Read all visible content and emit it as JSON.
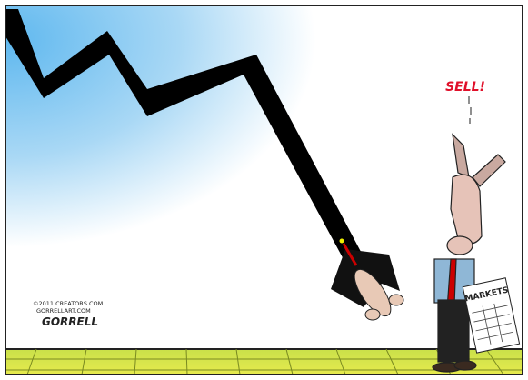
{
  "caption": {
    "speech": "SELL!"
  },
  "newspaper": {
    "title": "MARKETS"
  },
  "credits": {
    "copyright": "©2011 CREATORS.COM",
    "website": "GORRELLART.COM",
    "signature": "GORRELL"
  }
}
